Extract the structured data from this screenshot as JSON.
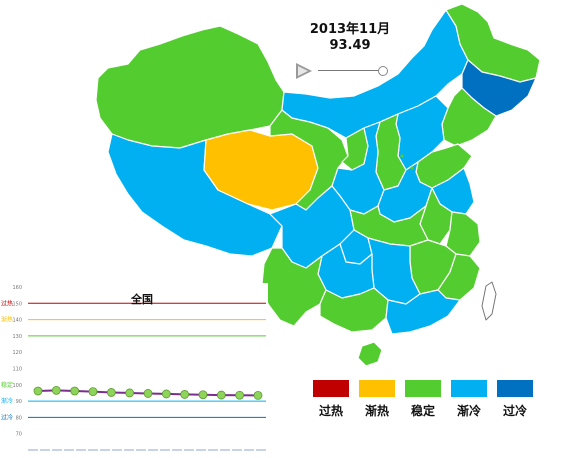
{
  "header": {
    "date": "2013年11月",
    "value": "93.49"
  },
  "colors": {
    "overheat": "#c00000",
    "warm": "#ffc000",
    "stable": "#52cc2e",
    "cool": "#00b0f0",
    "overcold": "#0070c0",
    "island": "#52cc2e"
  },
  "map": {
    "regions": [
      {
        "name": "xinjiang",
        "status": "stable"
      },
      {
        "name": "tibet",
        "status": "cool"
      },
      {
        "name": "qinghai",
        "status": "warm"
      },
      {
        "name": "gansu",
        "status": "stable"
      },
      {
        "name": "inner-mongolia",
        "status": "cool"
      },
      {
        "name": "heilongjiang",
        "status": "stable"
      },
      {
        "name": "jilin",
        "status": "overcold"
      },
      {
        "name": "liaoning",
        "status": "stable"
      },
      {
        "name": "ningxia",
        "status": "stable"
      },
      {
        "name": "shaanxi",
        "status": "cool"
      },
      {
        "name": "shanxi",
        "status": "stable"
      },
      {
        "name": "hebei",
        "status": "cool"
      },
      {
        "name": "shandong",
        "status": "stable"
      },
      {
        "name": "henan",
        "status": "cool"
      },
      {
        "name": "sichuan",
        "status": "cool"
      },
      {
        "name": "chongqing",
        "status": "cool"
      },
      {
        "name": "hubei",
        "status": "stable"
      },
      {
        "name": "anhui",
        "status": "stable"
      },
      {
        "name": "jiangsu",
        "status": "cool"
      },
      {
        "name": "zhejiang",
        "status": "stable"
      },
      {
        "name": "jiangxi",
        "status": "stable"
      },
      {
        "name": "hunan",
        "status": "cool"
      },
      {
        "name": "fujian",
        "status": "stable"
      },
      {
        "name": "guizhou",
        "status": "cool"
      },
      {
        "name": "yunnan",
        "status": "stable"
      },
      {
        "name": "guangxi",
        "status": "stable"
      },
      {
        "name": "guangdong",
        "status": "cool"
      },
      {
        "name": "hainan",
        "status": "stable"
      },
      {
        "name": "taiwan",
        "status": "white"
      }
    ]
  },
  "legend": [
    {
      "label": "过热",
      "color": "#c00000"
    },
    {
      "label": "渐热",
      "color": "#ffc000"
    },
    {
      "label": "稳定",
      "color": "#52cc2e"
    },
    {
      "label": "渐冷",
      "color": "#00b0f0"
    },
    {
      "label": "过冷",
      "color": "#0070c0"
    }
  ],
  "chart_data": {
    "type": "line",
    "title": "全国",
    "ylim": [
      60,
      160
    ],
    "yticks": [
      160,
      150,
      140,
      130,
      120,
      110,
      100,
      90,
      80,
      70
    ],
    "levels": [
      {
        "label": "过热",
        "value": 150,
        "color": "#c00000"
      },
      {
        "label": "渐热",
        "value": 140,
        "color": "#ffc000"
      },
      {
        "label": "稳定",
        "value": 100,
        "color": "#52cc2e"
      },
      {
        "label": "渐冷",
        "value": 90,
        "color": "#00b0f0"
      },
      {
        "label": "过冷",
        "value": 80,
        "color": "#0070c0"
      }
    ],
    "level_lines": [
      {
        "value": 150,
        "color": "#c00000"
      },
      {
        "value": 140,
        "color": "#ffc000"
      },
      {
        "value": 130,
        "color": "#52cc2e"
      },
      {
        "value": 90,
        "color": "#00b0f0"
      },
      {
        "value": 80,
        "color": "#0070c0"
      }
    ],
    "series": [
      {
        "values": [
          96.2,
          96.6,
          96.2,
          95.8,
          95.3,
          95.0,
          94.7,
          94.4,
          94.1,
          93.9,
          93.7,
          93.6,
          93.5
        ]
      }
    ]
  }
}
